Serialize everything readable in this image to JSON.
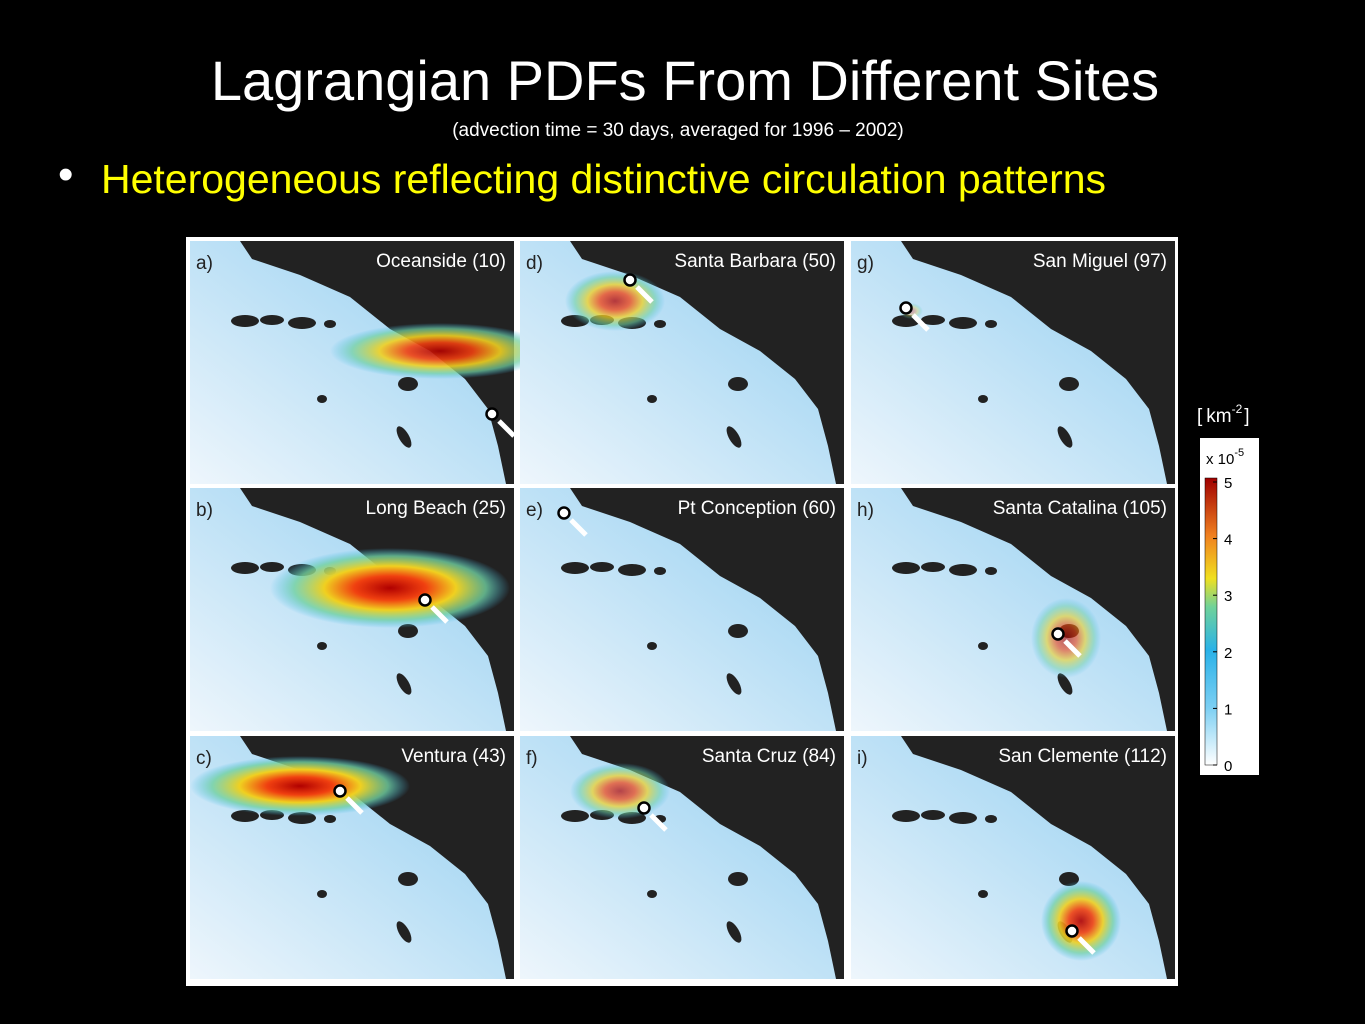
{
  "header": {
    "title": "Lagrangian PDFs From Different Sites",
    "subtitle": "(advection time = 30 days, averaged for 1996 – 2002)"
  },
  "bullet": "Heterogeneous reflecting distinctive circulation patterns",
  "panels": [
    {
      "letter": "a)",
      "label": "Oceanside (10)"
    },
    {
      "letter": "d)",
      "label": "Santa Barbara (50)"
    },
    {
      "letter": "g)",
      "label": "San Miguel (97)"
    },
    {
      "letter": "b)",
      "label": "Long Beach (25)"
    },
    {
      "letter": "e)",
      "label": "Pt Conception (60)"
    },
    {
      "letter": "h)",
      "label": "Santa Catalina (105)"
    },
    {
      "letter": "c)",
      "label": "Ventura (43)"
    },
    {
      "letter": "f)",
      "label": "Santa Cruz (84)"
    },
    {
      "letter": "i)",
      "label": "San Clemente (112)"
    }
  ],
  "colorbar": {
    "unit": {
      "open": "[",
      "base": "km",
      "exponent": "-2",
      "close": "]"
    },
    "scale": {
      "base": "x 10",
      "exponent": "-5"
    },
    "ticks": [
      0,
      1,
      2,
      3,
      4,
      5
    ]
  }
}
